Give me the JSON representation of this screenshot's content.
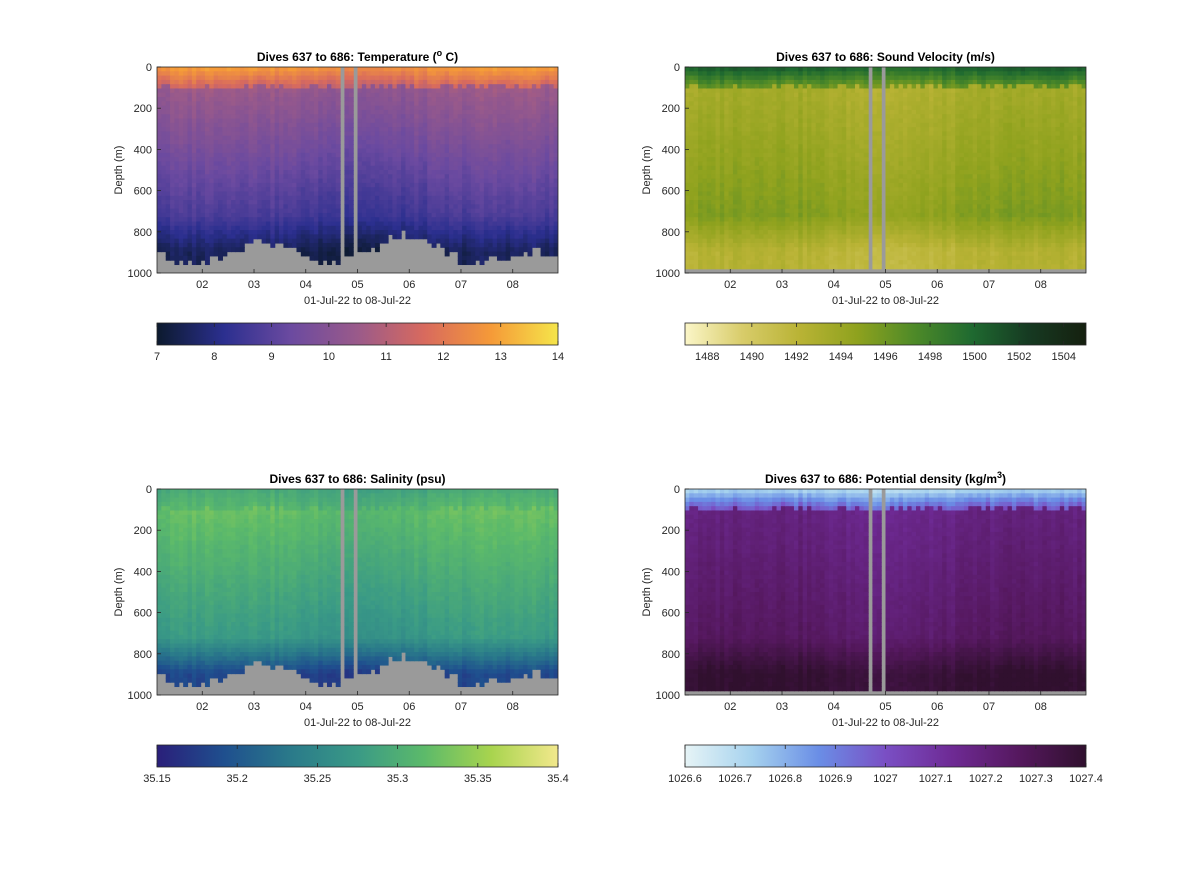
{
  "chart_data": [
    {
      "type": "heatmap",
      "title_main": "Dives 637 to 686: Temperature (",
      "title_sup": "o",
      "title_tail": " C)",
      "ylabel": "Depth (m)",
      "xlabel": "01-Jul-22 to 08-Jul-22",
      "x_range": [
        "2022-07-01 03:00",
        "2022-07-08 21:00"
      ],
      "x_ticks": [
        "02",
        "03",
        "04",
        "05",
        "06",
        "07",
        "08"
      ],
      "y_ticks": [
        "0",
        "200",
        "400",
        "600",
        "800",
        "1000"
      ],
      "ylim": [
        1000,
        0
      ],
      "colorbar_min": 7,
      "colorbar_max": 14,
      "colorbar_ticks": [
        "7",
        "8",
        "9",
        "10",
        "11",
        "12",
        "13",
        "14"
      ],
      "colormap": [
        "#0c1a2e",
        "#2b2f8f",
        "#6b4aa0",
        "#9a5a8a",
        "#d86a5e",
        "#f59a38",
        "#f5e54a"
      ],
      "surface_value": 12.8,
      "upper_value": 10.4,
      "deep_value": 8.6,
      "bottom_value": 7.4,
      "seafloor": true
    },
    {
      "type": "heatmap",
      "title_main": "Dives 637 to 686: Sound Velocity (m/s)",
      "title_sup": "",
      "title_tail": "",
      "ylabel": "Depth (m)",
      "xlabel": "01-Jul-22 to 08-Jul-22",
      "x_range": [
        "2022-07-01 03:00",
        "2022-07-08 21:00"
      ],
      "x_ticks": [
        "02",
        "03",
        "04",
        "05",
        "06",
        "07",
        "08"
      ],
      "y_ticks": [
        "0",
        "200",
        "400",
        "600",
        "800",
        "1000"
      ],
      "ylim": [
        1000,
        0
      ],
      "colorbar_min": 1487,
      "colorbar_max": 1505,
      "colorbar_ticks": [
        "1488",
        "1490",
        "1492",
        "1494",
        "1496",
        "1498",
        "1500",
        "1502",
        "1504"
      ],
      "colormap": [
        "#fbf6c8",
        "#d8cc6a",
        "#b9b335",
        "#8fa21e",
        "#4e8a28",
        "#1f6a30",
        "#163a22",
        "#15200f"
      ],
      "surface_value": 1500.5,
      "upper_value": 1493,
      "deep_value": 1495,
      "bottom_value": 1492,
      "seafloor": false
    },
    {
      "type": "heatmap",
      "title_main": "Dives 637 to 686: Salinity (psu)",
      "title_sup": "",
      "title_tail": "",
      "ylabel": "Depth (m)",
      "xlabel": "01-Jul-22 to 08-Jul-22",
      "x_range": [
        "2022-07-01 03:00",
        "2022-07-08 21:00"
      ],
      "x_ticks": [
        "02",
        "03",
        "04",
        "05",
        "06",
        "07",
        "08"
      ],
      "y_ticks": [
        "0",
        "200",
        "400",
        "600",
        "800",
        "1000"
      ],
      "ylim": [
        1000,
        0
      ],
      "colorbar_min": 35.15,
      "colorbar_max": 35.4,
      "colorbar_ticks": [
        "35.15",
        "35.2",
        "35.25",
        "35.3",
        "35.35",
        "35.4"
      ],
      "colormap": [
        "#2a1f7a",
        "#1f4f8e",
        "#2a7a8a",
        "#3a9a86",
        "#5cba6a",
        "#a8d44e",
        "#f2e88c"
      ],
      "surface_value": 35.29,
      "upper_value": 35.32,
      "deep_value": 35.27,
      "bottom_value": 35.18,
      "seafloor": true
    },
    {
      "type": "heatmap",
      "title_main": "Dives 637 to 686: Potential density (kg/m",
      "title_sup": "3",
      "title_tail": ")",
      "ylabel": "Depth (m)",
      "xlabel": "01-Jul-22 to 08-Jul-22",
      "x_range": [
        "2022-07-01 03:00",
        "2022-07-08 21:00"
      ],
      "x_ticks": [
        "02",
        "03",
        "04",
        "05",
        "06",
        "07",
        "08"
      ],
      "y_ticks": [
        "0",
        "200",
        "400",
        "600",
        "800",
        "1000"
      ],
      "ylim": [
        1000,
        0
      ],
      "colorbar_min": 1026.6,
      "colorbar_max": 1027.4,
      "colorbar_ticks": [
        "1026.6",
        "1026.7",
        "1026.8",
        "1026.9",
        "1027",
        "1027.1",
        "1027.2",
        "1027.3",
        "1027.4"
      ],
      "colormap": [
        "#e6f4f6",
        "#a6d2ee",
        "#6a8ee6",
        "#7a4fc4",
        "#6e2a94",
        "#55185e",
        "#30102e"
      ],
      "surface_value": 1026.7,
      "upper_value": 1027.17,
      "deep_value": 1027.25,
      "bottom_value": 1027.38,
      "seafloor": false
    }
  ]
}
